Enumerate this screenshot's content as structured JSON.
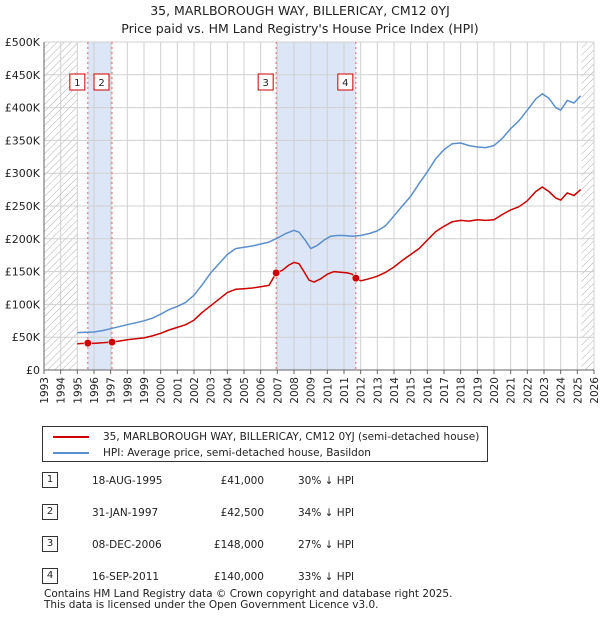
{
  "title_line1": "35, MARLBOROUGH WAY, BILLERICAY, CM12 0YJ",
  "title_line2": "Price paid vs. HM Land Registry's House Price Index (HPI)",
  "colors": {
    "property_line": "#cc0000",
    "hpi_line": "#5b8fcc",
    "shade": "#dde6f6",
    "grid": "#d0d0d0",
    "hatch": "#b0b0b0",
    "marker_border": "#cc0000"
  },
  "chart_data": {
    "type": "line",
    "title": "35, MARLBOROUGH WAY, BILLERICAY, CM12 0YJ — Price paid vs. HM Land Registry's House Price Index (HPI)",
    "xlim": [
      1993,
      2026
    ],
    "ylim": [
      0,
      500000
    ],
    "x_ticks": [
      "1993",
      "1994",
      "1995",
      "1996",
      "1997",
      "1998",
      "1999",
      "2000",
      "2001",
      "2002",
      "2003",
      "2004",
      "2005",
      "2006",
      "2007",
      "2008",
      "2009",
      "2010",
      "2011",
      "2012",
      "2013",
      "2014",
      "2015",
      "2016",
      "2017",
      "2018",
      "2019",
      "2020",
      "2021",
      "2022",
      "2023",
      "2024",
      "2025",
      "2026"
    ],
    "y_ticks": [
      {
        "value": 0,
        "label": "£0"
      },
      {
        "value": 50000,
        "label": "£50K"
      },
      {
        "value": 100000,
        "label": "£100K"
      },
      {
        "value": 150000,
        "label": "£150K"
      },
      {
        "value": 200000,
        "label": "£200K"
      },
      {
        "value": 250000,
        "label": "£250K"
      },
      {
        "value": 300000,
        "label": "£300K"
      },
      {
        "value": 350000,
        "label": "£350K"
      },
      {
        "value": 400000,
        "label": "£400K"
      },
      {
        "value": 450000,
        "label": "£450K"
      },
      {
        "value": 500000,
        "label": "£500K"
      }
    ],
    "grid": true,
    "hatched_ranges": [
      [
        1993,
        1995.0
      ],
      [
        2025.25,
        2026
      ]
    ],
    "shaded_ranges": [
      [
        1995.63,
        1997.08
      ],
      [
        2006.93,
        2011.71
      ]
    ],
    "series": [
      {
        "name": "35, MARLBOROUGH WAY, BILLERICAY, CM12 0YJ (semi-detached house)",
        "color": "#cc0000",
        "points": [
          [
            1995.0,
            40000
          ],
          [
            1995.63,
            41000
          ],
          [
            1996.0,
            40500
          ],
          [
            1996.5,
            41500
          ],
          [
            1997.08,
            42500
          ],
          [
            1997.5,
            44000
          ],
          [
            1998.0,
            46000
          ],
          [
            1998.5,
            47500
          ],
          [
            1999.0,
            49000
          ],
          [
            1999.5,
            52000
          ],
          [
            2000.0,
            56000
          ],
          [
            2000.5,
            61000
          ],
          [
            2001.0,
            65000
          ],
          [
            2001.5,
            69000
          ],
          [
            2002.0,
            76000
          ],
          [
            2002.5,
            88000
          ],
          [
            2003.0,
            98000
          ],
          [
            2003.5,
            108000
          ],
          [
            2004.0,
            118000
          ],
          [
            2004.5,
            123000
          ],
          [
            2005.0,
            124000
          ],
          [
            2005.5,
            125000
          ],
          [
            2006.0,
            127000
          ],
          [
            2006.5,
            129000
          ],
          [
            2006.93,
            148000
          ],
          [
            2007.3,
            152000
          ],
          [
            2007.7,
            160000
          ],
          [
            2008.0,
            164000
          ],
          [
            2008.3,
            162000
          ],
          [
            2008.6,
            150000
          ],
          [
            2008.9,
            137000
          ],
          [
            2009.2,
            134000
          ],
          [
            2009.6,
            139000
          ],
          [
            2010.0,
            146000
          ],
          [
            2010.4,
            150000
          ],
          [
            2010.8,
            149000
          ],
          [
            2011.2,
            148000
          ],
          [
            2011.5,
            146000
          ],
          [
            2011.71,
            140000
          ],
          [
            2012.0,
            136000
          ],
          [
            2012.5,
            139000
          ],
          [
            2013.0,
            143000
          ],
          [
            2013.5,
            149000
          ],
          [
            2014.0,
            157000
          ],
          [
            2014.5,
            167000
          ],
          [
            2015.0,
            176000
          ],
          [
            2015.5,
            185000
          ],
          [
            2016.0,
            198000
          ],
          [
            2016.5,
            211000
          ],
          [
            2017.0,
            219000
          ],
          [
            2017.5,
            226000
          ],
          [
            2018.0,
            228000
          ],
          [
            2018.5,
            227000
          ],
          [
            2019.0,
            229000
          ],
          [
            2019.5,
            228000
          ],
          [
            2020.0,
            229000
          ],
          [
            2020.5,
            237000
          ],
          [
            2021.0,
            244000
          ],
          [
            2021.5,
            249000
          ],
          [
            2022.0,
            258000
          ],
          [
            2022.5,
            272000
          ],
          [
            2022.9,
            279000
          ],
          [
            2023.3,
            272000
          ],
          [
            2023.7,
            262000
          ],
          [
            2024.0,
            259000
          ],
          [
            2024.4,
            270000
          ],
          [
            2024.8,
            266000
          ],
          [
            2025.2,
            275000
          ]
        ]
      },
      {
        "name": "HPI: Average price, semi-detached house, Basildon",
        "color": "#5b8fcc",
        "points": [
          [
            1995.0,
            57000
          ],
          [
            1995.5,
            57500
          ],
          [
            1996.0,
            58000
          ],
          [
            1996.5,
            60000
          ],
          [
            1997.0,
            63000
          ],
          [
            1997.5,
            66000
          ],
          [
            1998.0,
            69000
          ],
          [
            1998.5,
            72000
          ],
          [
            1999.0,
            75000
          ],
          [
            1999.5,
            79000
          ],
          [
            2000.0,
            85000
          ],
          [
            2000.5,
            92000
          ],
          [
            2001.0,
            97000
          ],
          [
            2001.5,
            103000
          ],
          [
            2002.0,
            114000
          ],
          [
            2002.5,
            130000
          ],
          [
            2003.0,
            148000
          ],
          [
            2003.5,
            162000
          ],
          [
            2004.0,
            176000
          ],
          [
            2004.5,
            185000
          ],
          [
            2005.0,
            187000
          ],
          [
            2005.5,
            189000
          ],
          [
            2006.0,
            192000
          ],
          [
            2006.5,
            195000
          ],
          [
            2007.0,
            201000
          ],
          [
            2007.5,
            208000
          ],
          [
            2008.0,
            213000
          ],
          [
            2008.3,
            210000
          ],
          [
            2008.7,
            197000
          ],
          [
            2009.0,
            185000
          ],
          [
            2009.4,
            190000
          ],
          [
            2009.8,
            198000
          ],
          [
            2010.2,
            204000
          ],
          [
            2010.6,
            205000
          ],
          [
            2011.0,
            205000
          ],
          [
            2011.5,
            204000
          ],
          [
            2012.0,
            205000
          ],
          [
            2012.5,
            208000
          ],
          [
            2013.0,
            212000
          ],
          [
            2013.5,
            220000
          ],
          [
            2014.0,
            235000
          ],
          [
            2014.5,
            250000
          ],
          [
            2015.0,
            265000
          ],
          [
            2015.5,
            284000
          ],
          [
            2016.0,
            302000
          ],
          [
            2016.5,
            322000
          ],
          [
            2017.0,
            336000
          ],
          [
            2017.5,
            345000
          ],
          [
            2018.0,
            346000
          ],
          [
            2018.5,
            342000
          ],
          [
            2019.0,
            340000
          ],
          [
            2019.5,
            339000
          ],
          [
            2020.0,
            342000
          ],
          [
            2020.5,
            353000
          ],
          [
            2021.0,
            368000
          ],
          [
            2021.5,
            380000
          ],
          [
            2022.0,
            396000
          ],
          [
            2022.5,
            413000
          ],
          [
            2022.9,
            421000
          ],
          [
            2023.3,
            414000
          ],
          [
            2023.7,
            400000
          ],
          [
            2024.0,
            396000
          ],
          [
            2024.4,
            411000
          ],
          [
            2024.8,
            407000
          ],
          [
            2025.2,
            418000
          ]
        ]
      }
    ],
    "sales": [
      {
        "label": "1",
        "x": 1995.63,
        "price": 41000
      },
      {
        "label": "2",
        "x": 1997.08,
        "price": 42500
      },
      {
        "label": "3",
        "x": 2006.93,
        "price": 148000
      },
      {
        "label": "4",
        "x": 2011.71,
        "price": 140000
      }
    ]
  },
  "legend": [
    {
      "label": "35, MARLBOROUGH WAY, BILLERICAY, CM12 0YJ (semi-detached house)",
      "color": "#cc0000"
    },
    {
      "label": "HPI: Average price, semi-detached house, Basildon",
      "color": "#5b8fcc"
    }
  ],
  "transactions": [
    {
      "num": "1",
      "date": "18-AUG-1995",
      "price": "£41,000",
      "delta": "30% ↓ HPI"
    },
    {
      "num": "2",
      "date": "31-JAN-1997",
      "price": "£42,500",
      "delta": "34% ↓ HPI"
    },
    {
      "num": "3",
      "date": "08-DEC-2006",
      "price": "£148,000",
      "delta": "27% ↓ HPI"
    },
    {
      "num": "4",
      "date": "16-SEP-2011",
      "price": "£140,000",
      "delta": "33% ↓ HPI"
    }
  ],
  "footer_line1": "Contains HM Land Registry data © Crown copyright and database right 2025.",
  "footer_line2": "This data is licensed under the Open Government Licence v3.0."
}
